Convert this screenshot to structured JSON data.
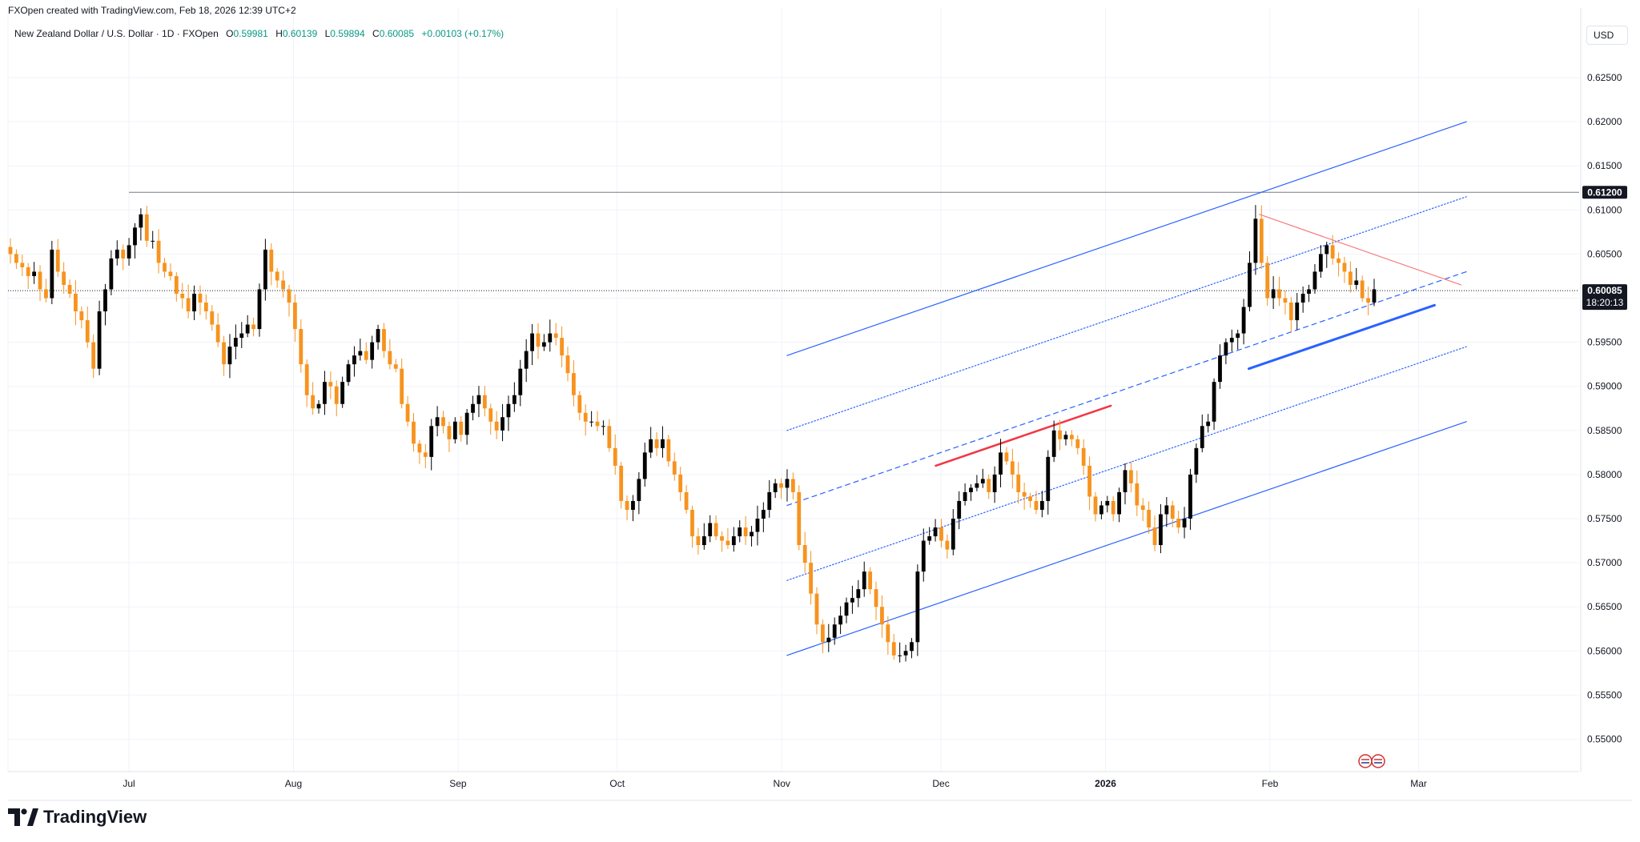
{
  "header": {
    "attribution": "FXOpen created with TradingView.com, Feb 18, 2026 12:39 UTC+2"
  },
  "symbol": {
    "title": "New Zealand Dollar / U.S. Dollar · 1D · FXOpen",
    "o_label": "O",
    "o_value": "0.59981",
    "h_label": "H",
    "h_value": "0.60139",
    "l_label": "L",
    "l_value": "0.59894",
    "c_label": "C",
    "c_value": "0.60085",
    "change": "+0.00103 (+0.17%)"
  },
  "currency_button": "USD",
  "footer": {
    "brand": "TradingView"
  },
  "colors": {
    "up": "#000000",
    "down": "#f7931e",
    "channel": "#2962ff",
    "red_line": "#f23645",
    "pink_line": "#f77c80",
    "positive_text": "#089981"
  },
  "chart_data": {
    "type": "candlestick",
    "interval": "1D",
    "ylim": [
      0.5455,
      0.6285
    ],
    "y_ticks": [
      "0.62500",
      "0.62000",
      "0.61500",
      "0.61000",
      "0.60500",
      "0.60000",
      "0.59500",
      "0.59000",
      "0.58500",
      "0.58000",
      "0.57500",
      "0.57000",
      "0.56500",
      "0.56000",
      "0.55500",
      "0.55000"
    ],
    "x_labels": [
      {
        "text": "Jul",
        "date": "2025-07-01"
      },
      {
        "text": "Aug",
        "date": "2025-08-01"
      },
      {
        "text": "Sep",
        "date": "2025-09-01"
      },
      {
        "text": "Oct",
        "date": "2025-10-01"
      },
      {
        "text": "Nov",
        "date": "2025-11-01"
      },
      {
        "text": "Dec",
        "date": "2025-12-01"
      },
      {
        "text": "2026",
        "date": "2026-01-01"
      },
      {
        "text": "Feb",
        "date": "2026-02-01"
      },
      {
        "text": "Mar",
        "date": "2026-03-01"
      }
    ],
    "price_labels": [
      {
        "value": "0.61200",
        "price": 0.612
      },
      {
        "value": "0.60085",
        "countdown": "18:20:13",
        "price": 0.60085
      }
    ],
    "horizontal_lines": [
      {
        "price": 0.612,
        "from": "2025-07-01"
      },
      {
        "price": 0.60085,
        "style": "dotted"
      }
    ],
    "closes": [
      0.605,
      0.604,
      0.6035,
      0.6025,
      0.603,
      0.601,
      0.6,
      0.6055,
      0.603,
      0.6015,
      0.6005,
      0.5985,
      0.5975,
      0.595,
      0.592,
      0.5985,
      0.601,
      0.6045,
      0.6055,
      0.6045,
      0.606,
      0.608,
      0.6095,
      0.6065,
      0.6065,
      0.604,
      0.603,
      0.6025,
      0.6005,
      0.6,
      0.5985,
      0.6005,
      0.5995,
      0.5985,
      0.597,
      0.595,
      0.5925,
      0.5945,
      0.5955,
      0.596,
      0.597,
      0.5965,
      0.601,
      0.6055,
      0.603,
      0.602,
      0.601,
      0.5995,
      0.5965,
      0.5925,
      0.589,
      0.5875,
      0.588,
      0.5905,
      0.59,
      0.588,
      0.5905,
      0.5925,
      0.5935,
      0.594,
      0.593,
      0.595,
      0.5965,
      0.594,
      0.5925,
      0.592,
      0.588,
      0.586,
      0.5835,
      0.5825,
      0.582,
      0.5855,
      0.5865,
      0.5855,
      0.584,
      0.586,
      0.5845,
      0.587,
      0.588,
      0.589,
      0.5875,
      0.586,
      0.585,
      0.5865,
      0.588,
      0.589,
      0.592,
      0.594,
      0.596,
      0.5945,
      0.595,
      0.596,
      0.5955,
      0.5935,
      0.5915,
      0.589,
      0.587,
      0.586,
      0.586,
      0.5855,
      0.5855,
      0.583,
      0.581,
      0.577,
      0.576,
      0.577,
      0.5795,
      0.5825,
      0.584,
      0.583,
      0.584,
      0.5815,
      0.58,
      0.578,
      0.576,
      0.573,
      0.572,
      0.573,
      0.5745,
      0.573,
      0.5725,
      0.572,
      0.573,
      0.574,
      0.573,
      0.5735,
      0.575,
      0.576,
      0.578,
      0.579,
      0.5785,
      0.5795,
      0.578,
      0.572,
      0.57,
      0.5665,
      0.563,
      0.561,
      0.5615,
      0.563,
      0.564,
      0.5655,
      0.566,
      0.567,
      0.569,
      0.567,
      0.565,
      0.563,
      0.561,
      0.5595,
      0.5595,
      0.56,
      0.561,
      0.569,
      0.5725,
      0.573,
      0.574,
      0.5725,
      0.5715,
      0.575,
      0.577,
      0.578,
      0.5785,
      0.579,
      0.5795,
      0.578,
      0.58,
      0.5825,
      0.5815,
      0.58,
      0.578,
      0.5775,
      0.577,
      0.576,
      0.577,
      0.582,
      0.585,
      0.584,
      0.5845,
      0.584,
      0.583,
      0.581,
      0.5775,
      0.5755,
      0.5765,
      0.577,
      0.5755,
      0.578,
      0.5805,
      0.579,
      0.5765,
      0.576,
      0.574,
      0.572,
      0.5755,
      0.5765,
      0.575,
      0.574,
      0.575,
      0.58,
      0.583,
      0.5855,
      0.586,
      0.5905,
      0.5935,
      0.595,
      0.5955,
      0.596,
      0.599,
      0.604,
      0.609,
      0.604,
      0.6,
      0.601,
      0.6,
      0.5995,
      0.5975,
      0.5995,
      0.6005,
      0.601,
      0.603,
      0.605,
      0.606,
      0.6045,
      0.604,
      0.603,
      0.6015,
      0.602,
      0.6,
      0.5995,
      0.601
    ],
    "drawings": [
      {
        "type": "trendline",
        "color": "#2962ff",
        "p1": {
          "date": "2025-11-02",
          "price": 0.5935
        },
        "p2": {
          "date": "2026-03-10",
          "price": 0.62
        }
      },
      {
        "type": "trendline",
        "color": "#2962ff",
        "p1": {
          "date": "2025-11-02",
          "price": 0.5595
        },
        "p2": {
          "date": "2026-03-10",
          "price": 0.586
        }
      },
      {
        "type": "trendline",
        "color": "#2962ff",
        "style": "dotted",
        "p1": {
          "date": "2025-11-02",
          "price": 0.585
        },
        "p2": {
          "date": "2026-03-10",
          "price": 0.6115
        }
      },
      {
        "type": "trendline",
        "color": "#2962ff",
        "style": "dotted",
        "p1": {
          "date": "2025-11-02",
          "price": 0.568
        },
        "p2": {
          "date": "2026-03-10",
          "price": 0.5945
        }
      },
      {
        "type": "trendline",
        "color": "#2962ff",
        "style": "dashed",
        "p1": {
          "date": "2025-11-02",
          "price": 0.5765
        },
        "p2": {
          "date": "2026-03-10",
          "price": 0.603
        }
      },
      {
        "type": "trendline",
        "color": "#f23645",
        "width": 2.5,
        "p1": {
          "date": "2025-11-30",
          "price": 0.581
        },
        "p2": {
          "date": "2026-01-02",
          "price": 0.5878
        }
      },
      {
        "type": "trendline",
        "color": "#2962ff",
        "width": 3,
        "p1": {
          "date": "2026-01-28",
          "price": 0.592
        },
        "p2": {
          "date": "2026-03-04",
          "price": 0.5992
        }
      },
      {
        "type": "trendline",
        "color": "#f77c80",
        "p1": {
          "date": "2026-01-30",
          "price": 0.6095
        },
        "p2": {
          "date": "2026-03-09",
          "price": 0.6015
        }
      }
    ],
    "grid": true,
    "legend": "none"
  }
}
